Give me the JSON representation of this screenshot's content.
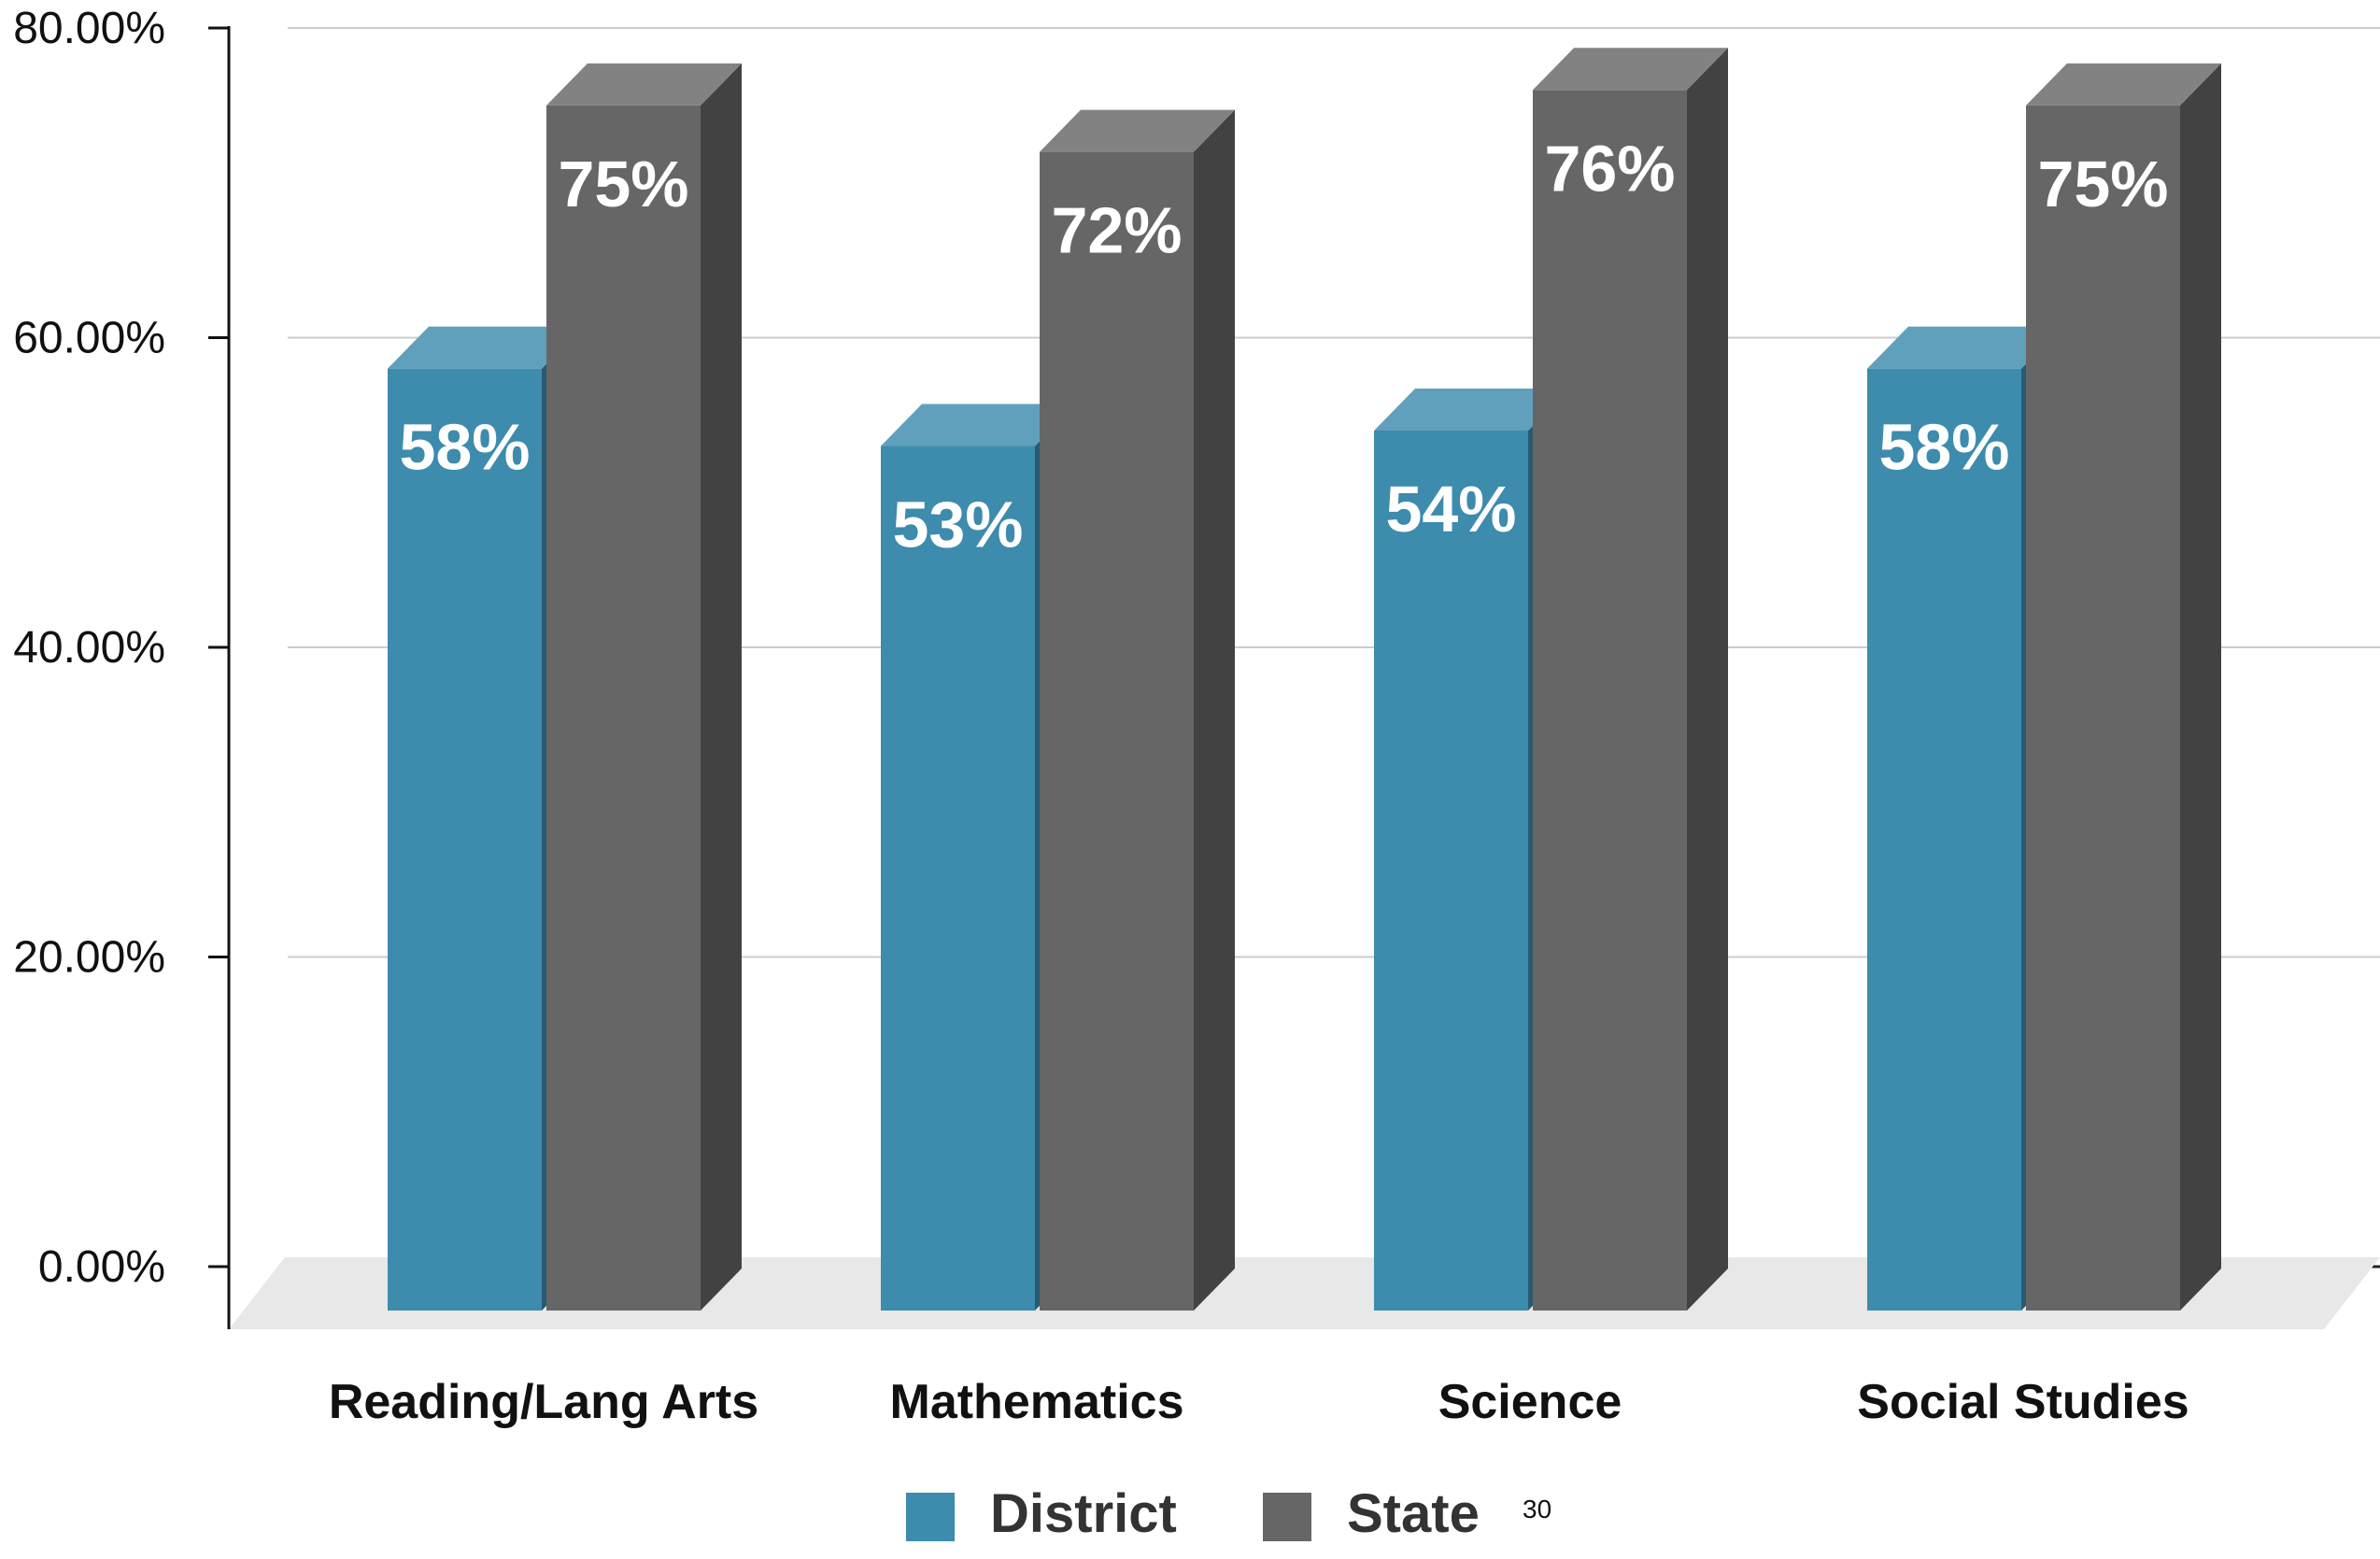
{
  "chart_data": {
    "type": "bar",
    "title": "",
    "xlabel": "",
    "ylabel": "",
    "categories": [
      "Reading/Lang Arts",
      "Mathematics",
      "Science",
      "Social Studies"
    ],
    "series": [
      {
        "name": "District",
        "values": [
          0.58,
          0.53,
          0.54,
          0.58
        ],
        "labels": [
          "58%",
          "53%",
          "54%",
          "58%"
        ],
        "color": "#3d8bad"
      },
      {
        "name": "State",
        "values": [
          0.75,
          0.72,
          0.76,
          0.75
        ],
        "labels": [
          "75%",
          "72%",
          "76%",
          "75%"
        ],
        "color": "#666666"
      }
    ],
    "ylim": [
      0,
      0.8
    ],
    "yticks": [
      "0.00%",
      "20.00%",
      "40.00%",
      "60.00%",
      "80.00%"
    ],
    "grid": true,
    "style": "3d-bar",
    "legend": {
      "placement": "bottom-center"
    }
  },
  "page_number": "30"
}
